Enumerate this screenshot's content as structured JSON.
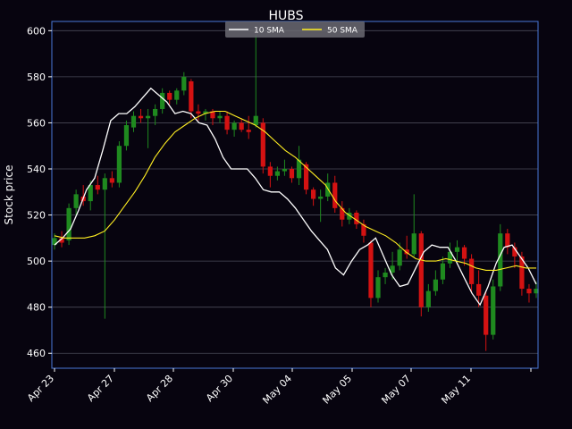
{
  "chart_data": {
    "type": "candlestick",
    "title": "HUBS",
    "ylabel": "Stock price",
    "xlabel": "",
    "ylim": [
      453.5,
      604
    ],
    "yticks": [
      460,
      480,
      500,
      520,
      540,
      560,
      580,
      600
    ],
    "xtick_labels": [
      "Apr 23",
      "Apr 27",
      "Apr 28",
      "Apr 30",
      "May 04",
      "May 05",
      "May 07",
      "May 11"
    ],
    "grid": "horizontal",
    "legend_position": "top",
    "colors": {
      "background": "#07040f",
      "axes_border": "#4a78d8",
      "grid": "#4a4a58",
      "up": "#1f8a1f",
      "down": "#d41212",
      "sma10": "#ffffff",
      "sma50": "#ffee22",
      "legend_bg": "#6a6a72"
    },
    "series": [
      {
        "name": "10 SMA",
        "color": "#ffffff",
        "values": [
          507,
          510,
          514,
          522,
          531,
          536,
          548,
          561,
          564,
          564,
          567,
          571,
          575,
          572,
          569,
          564,
          565,
          564,
          560,
          559,
          553,
          545,
          540,
          540,
          540,
          536,
          531,
          530,
          530,
          527,
          523,
          518,
          513,
          509,
          505,
          497,
          494,
          500,
          505,
          507,
          510,
          502,
          494,
          489,
          490,
          497,
          504,
          507,
          506,
          506,
          500,
          493,
          486,
          481,
          489,
          499,
          506,
          507,
          502,
          497,
          490
        ]
      },
      {
        "name": "50 SMA",
        "color": "#ffee22",
        "values": [
          511,
          510,
          510,
          510,
          511,
          513,
          518,
          524,
          530,
          537,
          545,
          551,
          556,
          559,
          562,
          564,
          565,
          565,
          563,
          561,
          559,
          556,
          552,
          548,
          545,
          541,
          537,
          533,
          526,
          521,
          518,
          515,
          513,
          511,
          508,
          504,
          501,
          500,
          500,
          501,
          500,
          499,
          497,
          496,
          496,
          497,
          498,
          497,
          497
        ]
      }
    ],
    "candles_summary": "Daily OHLC candles, approx. values by bar index",
    "candles": [
      {
        "o": 507,
        "h": 512,
        "l": 505,
        "c": 510
      },
      {
        "o": 510,
        "h": 513,
        "l": 506,
        "c": 508
      },
      {
        "o": 509,
        "h": 525,
        "l": 507,
        "c": 523
      },
      {
        "o": 523,
        "h": 531,
        "l": 520,
        "c": 529
      },
      {
        "o": 528,
        "h": 533,
        "l": 524,
        "c": 526
      },
      {
        "o": 526,
        "h": 535,
        "l": 522,
        "c": 533
      },
      {
        "o": 533,
        "h": 537,
        "l": 529,
        "c": 531
      },
      {
        "o": 531,
        "h": 538,
        "l": 475,
        "c": 536
      },
      {
        "o": 536,
        "h": 539,
        "l": 532,
        "c": 534
      },
      {
        "o": 534,
        "h": 552,
        "l": 532,
        "c": 550
      },
      {
        "o": 550,
        "h": 561,
        "l": 548,
        "c": 559
      },
      {
        "o": 558,
        "h": 565,
        "l": 556,
        "c": 563
      },
      {
        "o": 563,
        "h": 566,
        "l": 560,
        "c": 562
      },
      {
        "o": 562,
        "h": 566,
        "l": 549,
        "c": 563
      },
      {
        "o": 563,
        "h": 568,
        "l": 559,
        "c": 566
      },
      {
        "o": 566,
        "h": 575,
        "l": 564,
        "c": 573
      },
      {
        "o": 573,
        "h": 574,
        "l": 568,
        "c": 570
      },
      {
        "o": 570,
        "h": 575,
        "l": 568,
        "c": 574
      },
      {
        "o": 574,
        "h": 582,
        "l": 572,
        "c": 580
      },
      {
        "o": 578,
        "h": 579,
        "l": 562,
        "c": 565
      },
      {
        "o": 565,
        "h": 568,
        "l": 561,
        "c": 564
      },
      {
        "o": 564,
        "h": 566,
        "l": 561,
        "c": 565
      },
      {
        "o": 565,
        "h": 566,
        "l": 559,
        "c": 562
      },
      {
        "o": 562,
        "h": 565,
        "l": 560,
        "c": 563
      },
      {
        "o": 563,
        "h": 565,
        "l": 555,
        "c": 557
      },
      {
        "o": 557,
        "h": 561,
        "l": 554,
        "c": 560
      },
      {
        "o": 560,
        "h": 562,
        "l": 556,
        "c": 557
      },
      {
        "o": 557,
        "h": 563,
        "l": 553,
        "c": 556
      },
      {
        "o": 559,
        "h": 598,
        "l": 558,
        "c": 563
      },
      {
        "o": 560,
        "h": 562,
        "l": 538,
        "c": 541
      },
      {
        "o": 541,
        "h": 543,
        "l": 532,
        "c": 537
      },
      {
        "o": 537,
        "h": 541,
        "l": 535,
        "c": 539
      },
      {
        "o": 539,
        "h": 544,
        "l": 537,
        "c": 540
      },
      {
        "o": 540,
        "h": 541,
        "l": 534,
        "c": 536
      },
      {
        "o": 536,
        "h": 550,
        "l": 533,
        "c": 544
      },
      {
        "o": 542,
        "h": 543,
        "l": 529,
        "c": 531
      },
      {
        "o": 531,
        "h": 532,
        "l": 524,
        "c": 527
      },
      {
        "o": 527,
        "h": 531,
        "l": 517,
        "c": 528
      },
      {
        "o": 528,
        "h": 538,
        "l": 526,
        "c": 534
      },
      {
        "o": 534,
        "h": 537,
        "l": 521,
        "c": 523
      },
      {
        "o": 523,
        "h": 526,
        "l": 515,
        "c": 518
      },
      {
        "o": 518,
        "h": 523,
        "l": 516,
        "c": 521
      },
      {
        "o": 521,
        "h": 522,
        "l": 514,
        "c": 516
      },
      {
        "o": 516,
        "h": 518,
        "l": 508,
        "c": 511
      },
      {
        "o": 508,
        "h": 509,
        "l": 480,
        "c": 484
      },
      {
        "o": 484,
        "h": 496,
        "l": 482,
        "c": 493
      },
      {
        "o": 493,
        "h": 497,
        "l": 490,
        "c": 495
      },
      {
        "o": 495,
        "h": 504,
        "l": 492,
        "c": 498
      },
      {
        "o": 498,
        "h": 508,
        "l": 496,
        "c": 505
      },
      {
        "o": 505,
        "h": 511,
        "l": 501,
        "c": 503
      },
      {
        "o": 503,
        "h": 529,
        "l": 502,
        "c": 512
      },
      {
        "o": 512,
        "h": 513,
        "l": 476,
        "c": 480
      },
      {
        "o": 480,
        "h": 490,
        "l": 478,
        "c": 487
      },
      {
        "o": 487,
        "h": 496,
        "l": 485,
        "c": 492
      },
      {
        "o": 492,
        "h": 502,
        "l": 490,
        "c": 499
      },
      {
        "o": 499,
        "h": 508,
        "l": 497,
        "c": 504
      },
      {
        "o": 504,
        "h": 509,
        "l": 500,
        "c": 506
      },
      {
        "o": 506,
        "h": 507,
        "l": 498,
        "c": 501
      },
      {
        "o": 501,
        "h": 503,
        "l": 486,
        "c": 490
      },
      {
        "o": 490,
        "h": 496,
        "l": 480,
        "c": 485
      },
      {
        "o": 485,
        "h": 487,
        "l": 461,
        "c": 468
      },
      {
        "o": 468,
        "h": 492,
        "l": 466,
        "c": 489
      },
      {
        "o": 489,
        "h": 516,
        "l": 487,
        "c": 512
      },
      {
        "o": 512,
        "h": 514,
        "l": 503,
        "c": 506
      },
      {
        "o": 506,
        "h": 508,
        "l": 497,
        "c": 502
      },
      {
        "o": 502,
        "h": 504,
        "l": 485,
        "c": 488
      },
      {
        "o": 488,
        "h": 490,
        "l": 482,
        "c": 486
      },
      {
        "o": 486,
        "h": 491,
        "l": 484,
        "c": 488
      }
    ]
  }
}
